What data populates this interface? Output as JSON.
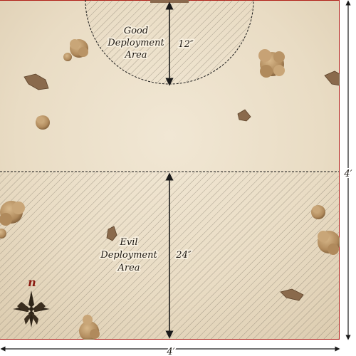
{
  "map": {
    "good_area": {
      "line1": "Good",
      "line2": "Deployment",
      "line3": "Area"
    },
    "evil_area": {
      "line1": "Evil",
      "line2": "Deployment",
      "line3": "Area"
    },
    "good_depth": "12″",
    "evil_depth": "24″",
    "width_label": "4′",
    "height_label": "4′",
    "compass_letter": "n"
  },
  "colors": {
    "parchment": "#ede1cc",
    "hatch": "#6e6558",
    "border": "#b01e16",
    "dimension": "#1a1a1a",
    "tree": "#a8845a",
    "rock": "#7a5a3c"
  }
}
